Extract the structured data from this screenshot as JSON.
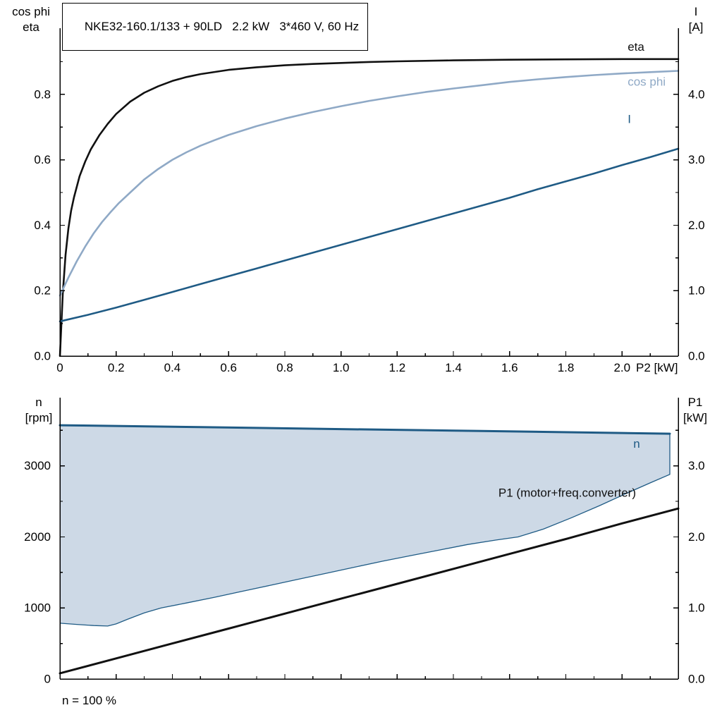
{
  "title_box": "NKE32-160.1/133 + 90LD   2.2 kW   3*460 V, 60 Hz",
  "footer_note": "n = 100 %",
  "colors": {
    "black": "#111111",
    "dark_blue": "#1f5b85",
    "light_blue": "#8fa9c6",
    "band_fill": "#cdd9e6",
    "axis": "#000000"
  },
  "chart_data": [
    {
      "type": "line",
      "title": "NKE32-160.1/133 + 90LD   2.2 kW   3*460 V, 60 Hz",
      "x_axis": {
        "label": "P2 [kW]",
        "min": 0,
        "max": 2.2,
        "major_ticks": [
          0,
          0.2,
          0.4,
          0.6,
          0.8,
          1.0,
          1.2,
          1.4,
          1.6,
          1.8,
          2.0
        ],
        "tick_labels": [
          "0",
          "0.2",
          "0.4",
          "0.6",
          "0.8",
          "1.0",
          "1.2",
          "1.4",
          "1.6",
          "1.8",
          "2.0"
        ],
        "show_labels": true
      },
      "y_left": {
        "title_lines": [
          "cos phi",
          "eta"
        ],
        "min": 0,
        "max": 0.97,
        "major_ticks": [
          0,
          0.2,
          0.4,
          0.6,
          0.8
        ],
        "tick_labels": [
          "0.0",
          "0.2",
          "0.4",
          "0.6",
          "0.8"
        ]
      },
      "y_right": {
        "title_lines": [
          "I",
          "[A]"
        ],
        "min": 0,
        "max": 4.85,
        "major_ticks": [
          0,
          1,
          2,
          3,
          4
        ],
        "tick_labels": [
          "0.0",
          "1.0",
          "2.0",
          "3.0",
          "4.0"
        ]
      },
      "series": [
        {
          "name": "eta",
          "label": "eta",
          "axis": "left",
          "color_key": "black",
          "width": 2.6,
          "label_pos": [
            2.02,
            0.945
          ],
          "points": [
            [
              0,
              0
            ],
            [
              0.01,
              0.19
            ],
            [
              0.02,
              0.31
            ],
            [
              0.03,
              0.39
            ],
            [
              0.04,
              0.445
            ],
            [
              0.05,
              0.485
            ],
            [
              0.07,
              0.55
            ],
            [
              0.09,
              0.595
            ],
            [
              0.11,
              0.632
            ],
            [
              0.14,
              0.675
            ],
            [
              0.17,
              0.71
            ],
            [
              0.2,
              0.74
            ],
            [
              0.25,
              0.778
            ],
            [
              0.3,
              0.805
            ],
            [
              0.35,
              0.825
            ],
            [
              0.4,
              0.841
            ],
            [
              0.45,
              0.853
            ],
            [
              0.5,
              0.862
            ],
            [
              0.6,
              0.875
            ],
            [
              0.7,
              0.883
            ],
            [
              0.8,
              0.889
            ],
            [
              0.9,
              0.893
            ],
            [
              1.0,
              0.896
            ],
            [
              1.1,
              0.899
            ],
            [
              1.2,
              0.901
            ],
            [
              1.4,
              0.904
            ],
            [
              1.6,
              0.906
            ],
            [
              1.8,
              0.907
            ],
            [
              2.0,
              0.908
            ],
            [
              2.2,
              0.908
            ]
          ]
        },
        {
          "name": "cos-phi",
          "label": "cos phi",
          "axis": "left",
          "color_key": "light_blue",
          "width": 2.6,
          "label_pos": [
            2.02,
            0.838
          ],
          "points": [
            [
              0,
              0.185
            ],
            [
              0.03,
              0.24
            ],
            [
              0.06,
              0.29
            ],
            [
              0.09,
              0.335
            ],
            [
              0.12,
              0.375
            ],
            [
              0.15,
              0.41
            ],
            [
              0.18,
              0.44
            ],
            [
              0.21,
              0.468
            ],
            [
              0.25,
              0.5
            ],
            [
              0.3,
              0.54
            ],
            [
              0.35,
              0.572
            ],
            [
              0.4,
              0.6
            ],
            [
              0.45,
              0.623
            ],
            [
              0.5,
              0.643
            ],
            [
              0.55,
              0.66
            ],
            [
              0.6,
              0.676
            ],
            [
              0.7,
              0.703
            ],
            [
              0.8,
              0.726
            ],
            [
              0.9,
              0.746
            ],
            [
              1.0,
              0.764
            ],
            [
              1.1,
              0.78
            ],
            [
              1.2,
              0.794
            ],
            [
              1.3,
              0.807
            ],
            [
              1.4,
              0.818
            ],
            [
              1.5,
              0.828
            ],
            [
              1.6,
              0.838
            ],
            [
              1.7,
              0.846
            ],
            [
              1.8,
              0.853
            ],
            [
              1.9,
              0.859
            ],
            [
              2.0,
              0.864
            ],
            [
              2.1,
              0.868
            ],
            [
              2.2,
              0.872
            ]
          ]
        },
        {
          "name": "current",
          "label": "I",
          "axis": "right",
          "color_key": "dark_blue",
          "width": 2.6,
          "label_pos": [
            2.02,
            3.62
          ],
          "points": [
            [
              0,
              0.53
            ],
            [
              0.1,
              0.63
            ],
            [
              0.2,
              0.74
            ],
            [
              0.3,
              0.86
            ],
            [
              0.4,
              0.98
            ],
            [
              0.5,
              1.1
            ],
            [
              0.6,
              1.22
            ],
            [
              0.7,
              1.34
            ],
            [
              0.8,
              1.46
            ],
            [
              0.9,
              1.58
            ],
            [
              1.0,
              1.7
            ],
            [
              1.1,
              1.82
            ],
            [
              1.2,
              1.94
            ],
            [
              1.3,
              2.06
            ],
            [
              1.4,
              2.18
            ],
            [
              1.5,
              2.3
            ],
            [
              1.6,
              2.42
            ],
            [
              1.7,
              2.55
            ],
            [
              1.8,
              2.67
            ],
            [
              1.9,
              2.79
            ],
            [
              2.0,
              2.92
            ],
            [
              2.1,
              3.04
            ],
            [
              2.2,
              3.17
            ]
          ]
        }
      ]
    },
    {
      "type": "line",
      "title": "",
      "note": "n = 100 %",
      "x_axis": {
        "label": "",
        "min": 0,
        "max": 2.2,
        "major_ticks": [
          0,
          0.2,
          0.4,
          0.6,
          0.8,
          1.0,
          1.2,
          1.4,
          1.6,
          1.8,
          2.0
        ],
        "tick_labels": [],
        "show_labels": false
      },
      "y_left": {
        "title_lines": [
          "n",
          "[rpm]"
        ],
        "min": 0,
        "max": 3900,
        "major_ticks": [
          0,
          1000,
          2000,
          3000
        ],
        "tick_labels": [
          "0",
          "1000",
          "2000",
          "3000"
        ]
      },
      "y_right": {
        "title_lines": [
          "P1",
          "[kW]"
        ],
        "min": 0,
        "max": 3.9,
        "major_ticks": [
          0,
          1,
          2,
          3
        ],
        "tick_labels": [
          "0.0",
          "1.0",
          "2.0",
          "3.0"
        ]
      },
      "band": {
        "name": "speed-control-range",
        "fill_key": "band_fill",
        "edge_color_key": "dark_blue",
        "edge_width": 1.3,
        "upper": [
          [
            0,
            3572
          ],
          [
            0.5,
            3545
          ],
          [
            1.0,
            3517
          ],
          [
            1.5,
            3490
          ],
          [
            2.0,
            3462
          ],
          [
            2.17,
            3452
          ]
        ],
        "lower": [
          [
            0,
            785
          ],
          [
            0.06,
            768
          ],
          [
            0.12,
            752
          ],
          [
            0.17,
            745
          ],
          [
            0.2,
            775
          ],
          [
            0.24,
            840
          ],
          [
            0.3,
            930
          ],
          [
            0.36,
            1000
          ],
          [
            0.45,
            1070
          ],
          [
            0.55,
            1150
          ],
          [
            0.65,
            1235
          ],
          [
            0.75,
            1320
          ],
          [
            0.85,
            1405
          ],
          [
            0.95,
            1490
          ],
          [
            1.05,
            1575
          ],
          [
            1.15,
            1660
          ],
          [
            1.25,
            1738
          ],
          [
            1.35,
            1815
          ],
          [
            1.45,
            1892
          ],
          [
            1.55,
            1955
          ],
          [
            1.63,
            2000
          ],
          [
            1.72,
            2110
          ],
          [
            1.82,
            2270
          ],
          [
            1.92,
            2440
          ],
          [
            2.02,
            2620
          ],
          [
            2.1,
            2760
          ],
          [
            2.17,
            2880
          ]
        ]
      },
      "series": [
        {
          "name": "n",
          "label": "n",
          "axis": "left",
          "color_key": "dark_blue",
          "width": 3,
          "label_pos": [
            2.04,
            3310
          ],
          "points": [
            [
              0,
              3572
            ],
            [
              0.5,
              3545
            ],
            [
              1.0,
              3517
            ],
            [
              1.5,
              3490
            ],
            [
              2.0,
              3462
            ],
            [
              2.17,
              3452
            ]
          ]
        },
        {
          "name": "p1",
          "label": "P1 (motor+freq.converter)",
          "axis": "right",
          "color_key": "black",
          "width": 3,
          "label_pos": [
            1.56,
            2.62
          ],
          "points": [
            [
              0,
              0.08
            ],
            [
              0.2,
              0.29
            ],
            [
              0.4,
              0.5
            ],
            [
              0.6,
              0.71
            ],
            [
              0.8,
              0.92
            ],
            [
              1.0,
              1.13
            ],
            [
              1.2,
              1.34
            ],
            [
              1.4,
              1.55
            ],
            [
              1.6,
              1.76
            ],
            [
              1.8,
              1.97
            ],
            [
              2.0,
              2.19
            ],
            [
              2.2,
              2.4
            ]
          ]
        }
      ]
    }
  ]
}
